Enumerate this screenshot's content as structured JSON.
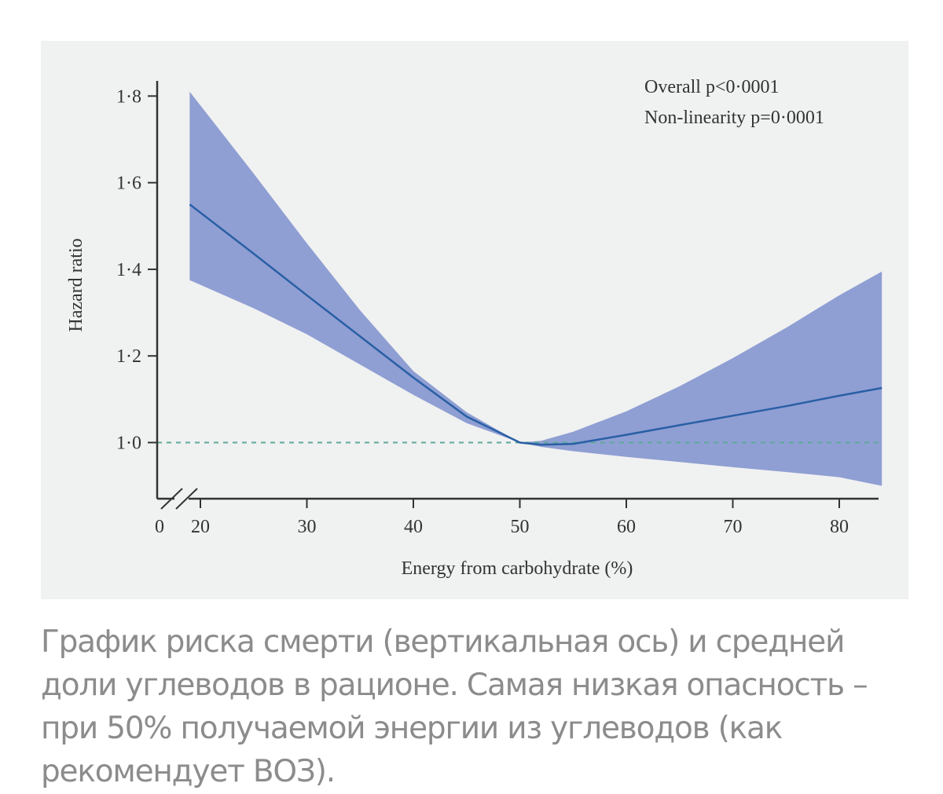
{
  "chart_data": {
    "type": "area",
    "xlabel": "Energy from carbohydrate (%)",
    "ylabel": "Hazard ratio",
    "annotations": [
      "Overall p<0·0001",
      "Non-linearity p=0·0001"
    ],
    "x_ticks": [
      "0",
      "20",
      "30",
      "40",
      "50",
      "60",
      "70",
      "80"
    ],
    "y_ticks": [
      "1·0",
      "1·2",
      "1·4",
      "1·6",
      "1·8"
    ],
    "xlim": [
      18,
      84
    ],
    "ylim": [
      0.87,
      1.82
    ],
    "axis_break": true,
    "reference_line": {
      "y": 1.0,
      "style": "dashed",
      "color": "#5ea89a"
    },
    "line": {
      "x": [
        19,
        25,
        30,
        35,
        40,
        45,
        50,
        52,
        55,
        60,
        65,
        70,
        75,
        80,
        84
      ],
      "y": [
        1.55,
        1.436,
        1.34,
        1.245,
        1.15,
        1.06,
        1.0,
        0.995,
        0.997,
        1.018,
        1.04,
        1.062,
        1.084,
        1.108,
        1.126
      ]
    },
    "band_upper": {
      "x": [
        19,
        25,
        30,
        35,
        40,
        45,
        50,
        52,
        55,
        60,
        65,
        70,
        75,
        80,
        84
      ],
      "y": [
        1.81,
        1.621,
        1.46,
        1.305,
        1.165,
        1.07,
        1.0,
        1.004,
        1.025,
        1.072,
        1.13,
        1.195,
        1.265,
        1.34,
        1.395
      ]
    },
    "band_lower": {
      "x": [
        19,
        25,
        30,
        35,
        40,
        45,
        50,
        52,
        55,
        60,
        65,
        70,
        75,
        80,
        84
      ],
      "y": [
        1.375,
        1.31,
        1.25,
        1.18,
        1.11,
        1.045,
        1.0,
        0.99,
        0.98,
        0.967,
        0.955,
        0.943,
        0.932,
        0.92,
        0.9
      ]
    },
    "colors": {
      "band": "#8f9fd3",
      "line": "#2a5fa5",
      "axis": "#333333"
    }
  },
  "caption": "График риска смерти (вертикальная ось) и средней доли углеводов в рационе. Самая низкая опасность – при 50% получаемой энергии из углеводов (как рекомендует ВОЗ)."
}
